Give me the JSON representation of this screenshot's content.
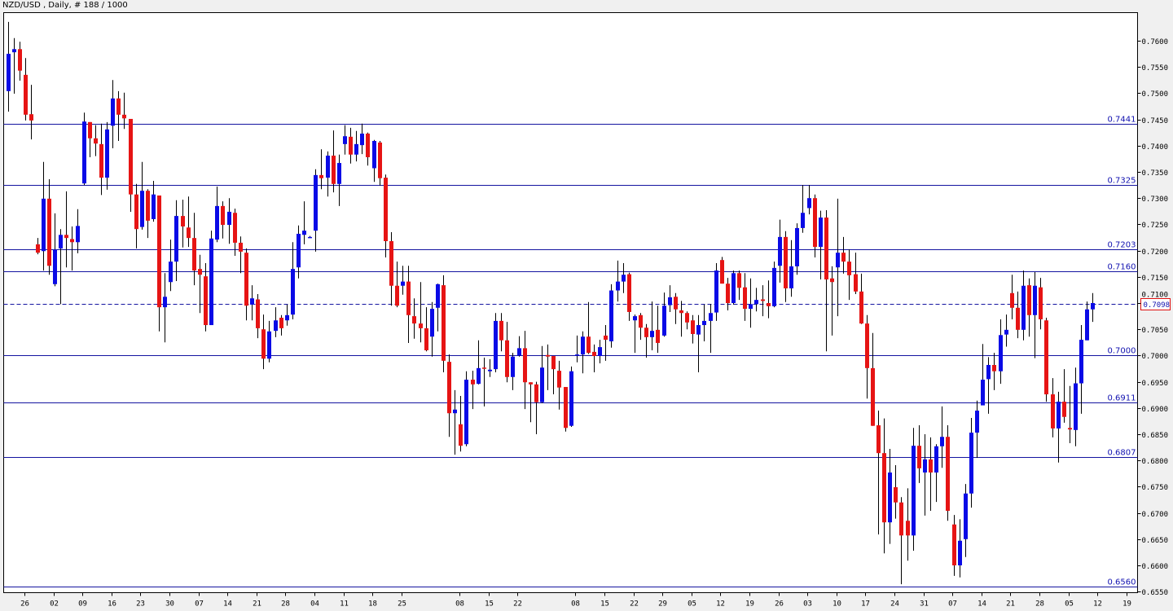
{
  "header": {
    "title": "NZD/USD , Daily, # 188 / 1000"
  },
  "colors": {
    "bull": "#0a0ae6",
    "bear": "#e61414",
    "wick": "#000000",
    "level_line": "#1414a0",
    "current_price_box": "#e01010"
  },
  "chart_data": {
    "type": "candlestick",
    "symbol": "NZD/USD",
    "timeframe": "Daily",
    "ylim": [
      0.655,
      0.762
    ],
    "y_ticks": [
      "0.6550",
      "0.6600",
      "0.6650",
      "0.6700",
      "0.6750",
      "0.6800",
      "0.6850",
      "0.6900",
      "0.6950",
      "0.7000",
      "0.7050",
      "0.7100",
      "0.7150",
      "0.7200",
      "0.7250",
      "0.7300",
      "0.7350",
      "0.7400",
      "0.7450",
      "0.7500",
      "0.7550",
      "0.7600"
    ],
    "current_price": "0.7098",
    "levels": [
      "0.7441",
      "0.7325",
      "0.7203",
      "0.7160",
      "0.7000",
      "0.6911",
      "0.6807",
      "0.6560"
    ],
    "x_ticks": [
      {
        "label": "26",
        "index": 3
      },
      {
        "label": "02",
        "index": 8
      },
      {
        "label": "09",
        "index": 13
      },
      {
        "label": "16",
        "index": 18
      },
      {
        "label": "23",
        "index": 23
      },
      {
        "label": "30",
        "index": 28
      },
      {
        "label": "07",
        "index": 33
      },
      {
        "label": "14",
        "index": 38
      },
      {
        "label": "21",
        "index": 43
      },
      {
        "label": "28",
        "index": 48
      },
      {
        "label": "04",
        "index": 53
      },
      {
        "label": "11",
        "index": 58
      },
      {
        "label": "18",
        "index": 63
      },
      {
        "label": "25",
        "index": 68
      },
      {
        "label": "08",
        "index": 78
      },
      {
        "label": "15",
        "index": 83
      },
      {
        "label": "22",
        "index": 88
      },
      {
        "label": "08",
        "index": 98
      },
      {
        "label": "15",
        "index": 103
      },
      {
        "label": "22",
        "index": 108
      },
      {
        "label": "29",
        "index": 113
      },
      {
        "label": "05",
        "index": 118
      },
      {
        "label": "12",
        "index": 123
      },
      {
        "label": "19",
        "index": 128
      },
      {
        "label": "26",
        "index": 133
      },
      {
        "label": "03",
        "index": 138
      },
      {
        "label": "10",
        "index": 143
      },
      {
        "label": "17",
        "index": 148
      },
      {
        "label": "24",
        "index": 153
      },
      {
        "label": "31",
        "index": 158
      },
      {
        "label": "07",
        "index": 163
      },
      {
        "label": "14",
        "index": 168
      },
      {
        "label": "21",
        "index": 173
      },
      {
        "label": "28",
        "index": 178
      },
      {
        "label": "05",
        "index": 183
      },
      {
        "label": "12",
        "index": 188
      },
      {
        "label": "19",
        "index": 193
      }
    ],
    "candles_ohlc": [
      [
        0.7504,
        0.7636,
        0.7465,
        0.7575
      ],
      [
        0.7578,
        0.7605,
        0.7499,
        0.7584
      ],
      [
        0.7584,
        0.7598,
        0.7524,
        0.7543
      ],
      [
        0.7535,
        0.7567,
        0.7448,
        0.7459
      ],
      [
        0.746,
        0.7516,
        0.7412,
        0.7448
      ],
      [
        0.7212,
        0.7224,
        0.7193,
        0.7196
      ],
      [
        0.7199,
        0.7369,
        0.7162,
        0.7299
      ],
      [
        0.7299,
        0.7336,
        0.7154,
        0.7171
      ],
      [
        0.7136,
        0.7271,
        0.7132,
        0.7202
      ],
      [
        0.7204,
        0.7241,
        0.7098,
        0.723
      ],
      [
        0.723,
        0.7313,
        0.7168,
        0.7224
      ],
      [
        0.7222,
        0.7246,
        0.7162,
        0.7216
      ],
      [
        0.7216,
        0.7279,
        0.7195,
        0.7247
      ],
      [
        0.7328,
        0.7463,
        0.7325,
        0.7446
      ],
      [
        0.7445,
        0.7445,
        0.7378,
        0.7414
      ],
      [
        0.7414,
        0.7439,
        0.738,
        0.7404
      ],
      [
        0.7403,
        0.7442,
        0.7306,
        0.7339
      ],
      [
        0.7339,
        0.7445,
        0.7316,
        0.7431
      ],
      [
        0.7438,
        0.7525,
        0.7395,
        0.749
      ],
      [
        0.749,
        0.7504,
        0.7409,
        0.7459
      ],
      [
        0.7459,
        0.7501,
        0.7432,
        0.7452
      ],
      [
        0.7451,
        0.7451,
        0.7274,
        0.7307
      ],
      [
        0.7307,
        0.7327,
        0.7204,
        0.7241
      ],
      [
        0.7245,
        0.7369,
        0.724,
        0.7314
      ],
      [
        0.7314,
        0.7317,
        0.7224,
        0.7257
      ],
      [
        0.726,
        0.7333,
        0.7255,
        0.7307
      ],
      [
        0.7305,
        0.7305,
        0.7046,
        0.7092
      ],
      [
        0.7092,
        0.7157,
        0.7025,
        0.7112
      ],
      [
        0.714,
        0.7221,
        0.7123,
        0.7179
      ],
      [
        0.7179,
        0.7296,
        0.7142,
        0.7266
      ],
      [
        0.7266,
        0.7297,
        0.7206,
        0.7246
      ],
      [
        0.7244,
        0.7303,
        0.7207,
        0.7224
      ],
      [
        0.7224,
        0.7272,
        0.7134,
        0.7162
      ],
      [
        0.7165,
        0.7192,
        0.7081,
        0.7154
      ],
      [
        0.7151,
        0.7176,
        0.7046,
        0.7058
      ],
      [
        0.7058,
        0.7238,
        0.7058,
        0.7223
      ],
      [
        0.7221,
        0.7322,
        0.7216,
        0.7285
      ],
      [
        0.7285,
        0.7294,
        0.7223,
        0.7249
      ],
      [
        0.7249,
        0.73,
        0.7213,
        0.7274
      ],
      [
        0.7272,
        0.728,
        0.719,
        0.7215
      ],
      [
        0.7215,
        0.7227,
        0.7157,
        0.7198
      ],
      [
        0.7196,
        0.7204,
        0.7067,
        0.7095
      ],
      [
        0.7097,
        0.7134,
        0.7067,
        0.7109
      ],
      [
        0.7107,
        0.7117,
        0.7033,
        0.7052
      ],
      [
        0.705,
        0.7078,
        0.6974,
        0.6994
      ],
      [
        0.6994,
        0.7066,
        0.6987,
        0.7046
      ],
      [
        0.7047,
        0.7092,
        0.7035,
        0.7067
      ],
      [
        0.7072,
        0.7077,
        0.7038,
        0.7052
      ],
      [
        0.7067,
        0.7097,
        0.7057,
        0.7077
      ],
      [
        0.7078,
        0.7216,
        0.7069,
        0.7165
      ],
      [
        0.7168,
        0.7248,
        0.7147,
        0.7232
      ],
      [
        0.723,
        0.7294,
        0.7212,
        0.7238
      ],
      [
        0.7226,
        0.7228,
        0.7224,
        0.7226
      ],
      [
        0.7238,
        0.7355,
        0.7198,
        0.7344
      ],
      [
        0.7344,
        0.7393,
        0.7317,
        0.7338
      ],
      [
        0.7339,
        0.7389,
        0.7303,
        0.7381
      ],
      [
        0.7381,
        0.7429,
        0.7311,
        0.7327
      ],
      [
        0.7327,
        0.7383,
        0.7285,
        0.7367
      ],
      [
        0.7403,
        0.7439,
        0.7383,
        0.7418
      ],
      [
        0.7417,
        0.7434,
        0.7366,
        0.7383
      ],
      [
        0.7383,
        0.7428,
        0.737,
        0.7403
      ],
      [
        0.7401,
        0.7442,
        0.7384,
        0.7423
      ],
      [
        0.7423,
        0.7425,
        0.7362,
        0.7378
      ],
      [
        0.7357,
        0.7411,
        0.7331,
        0.7409
      ],
      [
        0.7406,
        0.7409,
        0.7324,
        0.7338
      ],
      [
        0.7339,
        0.7345,
        0.7187,
        0.7218
      ],
      [
        0.7218,
        0.7235,
        0.7095,
        0.7133
      ],
      [
        0.7133,
        0.7179,
        0.7092,
        0.7095
      ],
      [
        0.7133,
        0.7171,
        0.7116,
        0.7141
      ],
      [
        0.7141,
        0.7171,
        0.7024,
        0.7077
      ],
      [
        0.7075,
        0.7109,
        0.7032,
        0.7061
      ],
      [
        0.7061,
        0.714,
        0.7025,
        0.7052
      ],
      [
        0.7052,
        0.7092,
        0.7008,
        0.701
      ],
      [
        0.7036,
        0.7102,
        0.6998,
        0.7089
      ],
      [
        0.7091,
        0.7137,
        0.7046,
        0.7136
      ],
      [
        0.7134,
        0.7153,
        0.6968,
        0.699
      ],
      [
        0.6988,
        0.7002,
        0.6845,
        0.689
      ],
      [
        0.689,
        0.6934,
        0.6811,
        0.6897
      ],
      [
        0.6869,
        0.6923,
        0.6817,
        0.6828
      ],
      [
        0.6831,
        0.697,
        0.6827,
        0.6954
      ],
      [
        0.6954,
        0.6971,
        0.6898,
        0.6945
      ],
      [
        0.6946,
        0.7029,
        0.6945,
        0.6976
      ],
      [
        0.6977,
        0.6996,
        0.6903,
        0.6975
      ],
      [
        0.697,
        0.6993,
        0.6959,
        0.6973
      ],
      [
        0.6974,
        0.7081,
        0.6968,
        0.7066
      ],
      [
        0.7066,
        0.7081,
        0.7008,
        0.7029
      ],
      [
        0.7029,
        0.7064,
        0.6949,
        0.6959
      ],
      [
        0.6959,
        0.7005,
        0.6934,
        0.6998
      ],
      [
        0.7,
        0.7037,
        0.6998,
        0.7014
      ],
      [
        0.7014,
        0.7047,
        0.6898,
        0.6949
      ],
      [
        0.6949,
        0.6949,
        0.6873,
        0.6945
      ],
      [
        0.6945,
        0.695,
        0.685,
        0.6911
      ],
      [
        0.6911,
        0.7018,
        0.6909,
        0.6977
      ],
      [
        0.7001,
        0.7021,
        0.6934,
        0.6998
      ],
      [
        0.6999,
        0.6999,
        0.6926,
        0.6974
      ],
      [
        0.6971,
        0.699,
        0.6897,
        0.6939
      ],
      [
        0.694,
        0.694,
        0.6855,
        0.6862
      ],
      [
        0.6866,
        0.6979,
        0.6864,
        0.697
      ],
      [
        0.7,
        0.7038,
        0.6987,
        0.7002
      ],
      [
        0.7002,
        0.7046,
        0.6966,
        0.7036
      ],
      [
        0.7036,
        0.7102,
        0.7003,
        0.7005
      ],
      [
        0.7007,
        0.7021,
        0.6968,
        0.6999
      ],
      [
        0.6999,
        0.703,
        0.6985,
        0.7016
      ],
      [
        0.7038,
        0.7058,
        0.699,
        0.703
      ],
      [
        0.7027,
        0.7136,
        0.7015,
        0.7124
      ],
      [
        0.7124,
        0.7181,
        0.7103,
        0.7141
      ],
      [
        0.7141,
        0.7176,
        0.7119,
        0.7154
      ],
      [
        0.7155,
        0.7158,
        0.7066,
        0.7083
      ],
      [
        0.7067,
        0.7078,
        0.7005,
        0.7075
      ],
      [
        0.7077,
        0.7081,
        0.703,
        0.7053
      ],
      [
        0.7053,
        0.706,
        0.6996,
        0.7035
      ],
      [
        0.7035,
        0.7103,
        0.701,
        0.7047
      ],
      [
        0.7049,
        0.7095,
        0.7005,
        0.7024
      ],
      [
        0.7038,
        0.712,
        0.7036,
        0.7095
      ],
      [
        0.7096,
        0.7134,
        0.7083,
        0.7111
      ],
      [
        0.7112,
        0.7119,
        0.706,
        0.7088
      ],
      [
        0.7086,
        0.7104,
        0.7036,
        0.7081
      ],
      [
        0.7081,
        0.7084,
        0.705,
        0.7063
      ],
      [
        0.7067,
        0.7077,
        0.7023,
        0.7041
      ],
      [
        0.704,
        0.7077,
        0.6968,
        0.7058
      ],
      [
        0.7058,
        0.7097,
        0.7027,
        0.7066
      ],
      [
        0.7066,
        0.7098,
        0.7005,
        0.7081
      ],
      [
        0.7082,
        0.7176,
        0.7066,
        0.7162
      ],
      [
        0.7182,
        0.7188,
        0.7137,
        0.7137
      ],
      [
        0.7137,
        0.7148,
        0.7086,
        0.71
      ],
      [
        0.71,
        0.7162,
        0.7097,
        0.7157
      ],
      [
        0.7157,
        0.7162,
        0.7106,
        0.7129
      ],
      [
        0.713,
        0.7157,
        0.7066,
        0.7089
      ],
      [
        0.7089,
        0.7147,
        0.7053,
        0.7098
      ],
      [
        0.7098,
        0.7129,
        0.7084,
        0.7106
      ],
      [
        0.7107,
        0.7134,
        0.7075,
        0.7104
      ],
      [
        0.71,
        0.7143,
        0.7071,
        0.7094
      ],
      [
        0.7094,
        0.7179,
        0.7092,
        0.7167
      ],
      [
        0.7171,
        0.7259,
        0.7139,
        0.7226
      ],
      [
        0.7226,
        0.7237,
        0.7102,
        0.7128
      ],
      [
        0.7128,
        0.722,
        0.7112,
        0.717
      ],
      [
        0.717,
        0.7252,
        0.7154,
        0.7243
      ],
      [
        0.7243,
        0.7325,
        0.7234,
        0.7272
      ],
      [
        0.7281,
        0.7325,
        0.7269,
        0.73
      ],
      [
        0.73,
        0.7307,
        0.7187,
        0.7207
      ],
      [
        0.7207,
        0.7276,
        0.7145,
        0.7263
      ],
      [
        0.7263,
        0.7277,
        0.7008,
        0.7145
      ],
      [
        0.7147,
        0.717,
        0.7038,
        0.714
      ],
      [
        0.7168,
        0.7299,
        0.7075,
        0.7196
      ],
      [
        0.7196,
        0.7226,
        0.7156,
        0.7179
      ],
      [
        0.7179,
        0.7202,
        0.7106,
        0.7153
      ],
      [
        0.7155,
        0.7196,
        0.7117,
        0.7122
      ],
      [
        0.7122,
        0.7156,
        0.706,
        0.7061
      ],
      [
        0.7061,
        0.7077,
        0.6918,
        0.6976
      ],
      [
        0.6976,
        0.7043,
        0.6866,
        0.6866
      ],
      [
        0.6867,
        0.6895,
        0.6659,
        0.6814
      ],
      [
        0.6814,
        0.688,
        0.6623,
        0.6682
      ],
      [
        0.6682,
        0.6822,
        0.6641,
        0.6777
      ],
      [
        0.6749,
        0.6791,
        0.6689,
        0.672
      ],
      [
        0.672,
        0.673,
        0.6564,
        0.6657
      ],
      [
        0.6685,
        0.6747,
        0.6609,
        0.6657
      ],
      [
        0.6657,
        0.6862,
        0.6628,
        0.6828
      ],
      [
        0.6828,
        0.6867,
        0.6757,
        0.6785
      ],
      [
        0.6777,
        0.685,
        0.6695,
        0.6802
      ],
      [
        0.6802,
        0.6844,
        0.6704,
        0.6777
      ],
      [
        0.6777,
        0.6831,
        0.6721,
        0.6827
      ],
      [
        0.6827,
        0.6903,
        0.6786,
        0.6845
      ],
      [
        0.6845,
        0.6867,
        0.6685,
        0.6704
      ],
      [
        0.6678,
        0.6696,
        0.658,
        0.66
      ],
      [
        0.66,
        0.6688,
        0.6577,
        0.6647
      ],
      [
        0.665,
        0.6755,
        0.6616,
        0.6737
      ],
      [
        0.6737,
        0.6881,
        0.671,
        0.6853
      ],
      [
        0.6853,
        0.6914,
        0.6805,
        0.6895
      ],
      [
        0.6905,
        0.7022,
        0.6914,
        0.6954
      ],
      [
        0.6955,
        0.6997,
        0.6889,
        0.6982
      ],
      [
        0.6982,
        0.7005,
        0.6934,
        0.697
      ],
      [
        0.697,
        0.7069,
        0.6946,
        0.7039
      ],
      [
        0.704,
        0.7078,
        0.7017,
        0.7049
      ],
      [
        0.7119,
        0.7154,
        0.7069,
        0.7091
      ],
      [
        0.7091,
        0.7122,
        0.7033,
        0.7049
      ],
      [
        0.7049,
        0.7162,
        0.7029,
        0.7133
      ],
      [
        0.7134,
        0.7147,
        0.7036,
        0.7077
      ],
      [
        0.7077,
        0.7159,
        0.6995,
        0.7133
      ],
      [
        0.713,
        0.7148,
        0.705,
        0.7069
      ],
      [
        0.7067,
        0.7072,
        0.6912,
        0.6926
      ],
      [
        0.6926,
        0.6957,
        0.6844,
        0.6861
      ],
      [
        0.6861,
        0.6931,
        0.6796,
        0.6912
      ],
      [
        0.6912,
        0.6974,
        0.6872,
        0.6883
      ],
      [
        0.6862,
        0.6942,
        0.6833,
        0.6859
      ],
      [
        0.6858,
        0.6977,
        0.6827,
        0.6947
      ],
      [
        0.6947,
        0.7058,
        0.6889,
        0.703
      ],
      [
        0.7029,
        0.7103,
        0.7029,
        0.7088
      ],
      [
        0.7088,
        0.7119,
        0.7064,
        0.71
      ]
    ]
  }
}
